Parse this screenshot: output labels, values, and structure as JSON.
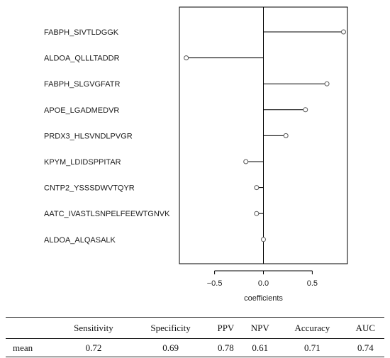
{
  "chart_data": {
    "type": "lollipop",
    "categories": [
      "FABPH_SIVTLDGGK",
      "ALDOA_QLLLTADDR",
      "FABPH_SLGVGFATR",
      "APOE_LGADMEDVR",
      "PRDX3_HLSVNDLPVGR",
      "KPYM_LDIDSPPITAR",
      "CNTP2_YSSSDWVTQYR",
      "AATC_IVASTLSNPELFEEWTGNVK",
      "ALDOA_ALQASALK"
    ],
    "values": [
      0.82,
      -0.79,
      0.65,
      0.43,
      0.23,
      -0.18,
      -0.07,
      -0.07,
      0.0
    ],
    "xlabel": "coefficients",
    "ylabel": "",
    "xlim": [
      -0.86,
      0.86
    ],
    "xticks": [
      -0.5,
      0.0,
      0.5
    ],
    "xtick_labels": [
      "−0.5",
      "0.0",
      "0.5"
    ],
    "reference_line": 0.0,
    "grid": false,
    "colors": {
      "line": "#000000",
      "marker": "#555555",
      "guide": "#cccccc"
    }
  },
  "metrics_table": {
    "columns": [
      "",
      "Sensitivity",
      "Specificity",
      "PPV",
      "NPV",
      "Accuracy",
      "AUC"
    ],
    "rows": [
      {
        "label": "mean",
        "values": [
          "0.72",
          "0.69",
          "0.78",
          "0.61",
          "0.71",
          "0.74"
        ]
      }
    ]
  }
}
